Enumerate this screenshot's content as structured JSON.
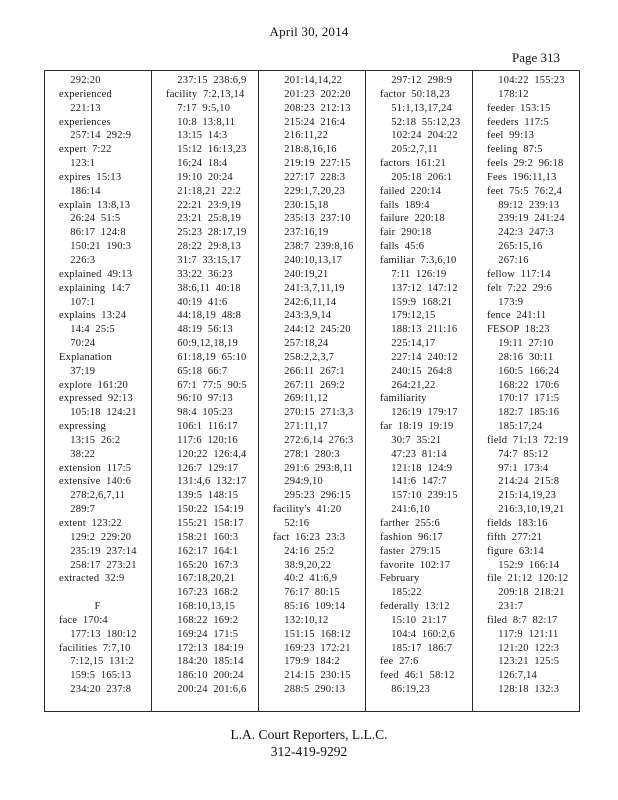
{
  "header": {
    "date": "April 30, 2014",
    "page_label": "Page 313"
  },
  "index": {
    "columns": [
      {
        "lines": [
          "    292:20",
          "experienced",
          "    221:13",
          "experiences",
          "    257:14  292:9",
          "expert  7:22",
          "    123:1",
          "expires  15:13",
          "    186:14",
          "explain  13:8,13",
          "    26:24  51:5",
          "    86:17  124:8",
          "    150:21  190:3",
          "    226:3",
          "explained  49:13",
          "explaining  14:7",
          "    107:1",
          "explains  13:24",
          "    14:4  25:5",
          "    70:24",
          "Explanation",
          "    37:19",
          "explore  161:20",
          "expressed  92:13",
          "    105:18  124:21",
          "expressing",
          "    13:15  26:2",
          "    38:22",
          "extension  117:5",
          "extensive  140:6",
          "    278:2,6,7,11",
          "    289:7",
          "extent  123:22",
          "    129:2  229:20",
          "    235:19  237:14",
          "    258:17  273:21",
          "extracted  32:9",
          "",
          "F",
          "face  170:4",
          "    177:13  180:12",
          "facilities  7:7,10",
          "    7:12,15  131:2",
          "    159:5  165:13",
          "    234:20  237:8"
        ]
      },
      {
        "lines": [
          "    237:15  238:6,9",
          "facility  7:2,13,14",
          "    7:17  9:5,10",
          "    10:8  13:8,11",
          "    13:15  14:3",
          "    15:12  16:13,23",
          "    16:24  18:4",
          "    19:10  20:24",
          "    21:18,21  22:2",
          "    22:21  23:9,19",
          "    23:21  25:8,19",
          "    25:23  28:17,19",
          "    28:22  29:8,13",
          "    31:7  33:15,17",
          "    33:22  36:23",
          "    38:6,11  40:18",
          "    40:19  41:6",
          "    44:18,19  48:8",
          "    48:19  56:13",
          "    60:9,12,18,19",
          "    61:18,19  65:10",
          "    65:18  66:7",
          "    67:1  77:5  90:5",
          "    96:10  97:13",
          "    98:4  105:23",
          "    106:1  116:17",
          "    117:6  120:16",
          "    120:22  126:4,4",
          "    126:7  129:17",
          "    131:4,6  132:17",
          "    139:5  148:15",
          "    150:22  154:19",
          "    155:21  158:17",
          "    158:21  160:3",
          "    162:17  164:1",
          "    165:20  167:3",
          "    167:18,20,21",
          "    167:23  168:2",
          "    168:10,13,15",
          "    168:22  169:2",
          "    169:24  171:5",
          "    172:13  184:19",
          "    184:20  185:14",
          "    186:10  200:24",
          "    200:24  201:6,6"
        ]
      },
      {
        "lines": [
          "    201:14,14,22",
          "    201:23  202:20",
          "    208:23  212:13",
          "    215:24  216:4",
          "    216:11,22",
          "    218:8,16,16",
          "    219:19  227:15",
          "    227:17  228:3",
          "    229:1,7,20,23",
          "    230:15,18",
          "    235:13  237:10",
          "    237:16,19",
          "    238:7  239:8,16",
          "    240:10,13,17",
          "    240:19,21",
          "    241:3,7,11,19",
          "    242:6,11,14",
          "    243:3,9,14",
          "    244:12  245:20",
          "    257:18,24",
          "    258:2,2,3,7",
          "    266:11  267:1",
          "    267:11  269:2",
          "    269:11,12",
          "    270:15  271:3,3",
          "    271:11,17",
          "    272:6,14  276:3",
          "    278:1  280:3",
          "    291:6  293:8,11",
          "    294:9,10",
          "    295:23  296:15",
          "facility's  41:20",
          "    52:16",
          "fact  16:23  23:3",
          "    24:16  25:2",
          "    38:9,20,22",
          "    40:2  41:6,9",
          "    76:17  80:15",
          "    85:16  109:14",
          "    132:10,12",
          "    151:15  168:12",
          "    169:23  172:21",
          "    179:9  184:2",
          "    214:15  230:15",
          "    288:5  290:13"
        ]
      },
      {
        "lines": [
          "    297:12  298:9",
          "factor  50:18,23",
          "    51:1,13,17,24",
          "    52:18  55:12,23",
          "    102:24  204:22",
          "    205:2,7,11",
          "factors  161:21",
          "    205:18  206:1",
          "failed  220:14",
          "fails  189:4",
          "failure  220:18",
          "fair  290:18",
          "falls  45:6",
          "familiar  7:3,6,10",
          "    7:11  126:19",
          "    137:12  147:12",
          "    159:9  168:21",
          "    179:12,15",
          "    188:13  211:16",
          "    225:14,17",
          "    227:14  240:12",
          "    240:15  264:8",
          "    264:21,22",
          "familiarity",
          "    126:19  179:17",
          "far  18:19  19:19",
          "    30:7  35:21",
          "    47:23  81:14",
          "    121:18  124:9",
          "    141:6  147:7",
          "    157:10  239:15",
          "    241:6,10",
          "farther  255:6",
          "fashion  96:17",
          "faster  279:15",
          "favorite  102:17",
          "February",
          "    185:22",
          "federally  13:12",
          "    15:10  21:17",
          "    104:4  160:2,6",
          "    185:17  186:7",
          "fee  27:6",
          "feed  46:1  58:12",
          "    86:19,23"
        ]
      },
      {
        "lines": [
          "    104:22  155:23",
          "    178:12",
          "feeder  153:15",
          "feeders  117:5",
          "feel  99:13",
          "feeling  87:5",
          "feels  29:2  96:18",
          "Fees  196:11,13",
          "feet  75:5  76:2,4",
          "    89:12  239:13",
          "    239:19  241:24",
          "    242:3  247:3",
          "    265:15,16",
          "    267:16",
          "fellow  117:14",
          "felt  7:22  29:6",
          "    173:9",
          "fence  241:11",
          "FESOP  18:23",
          "    19:11  27:10",
          "    28:16  30:11",
          "    160:5  166:24",
          "    168:22  170:6",
          "    170:17  171:5",
          "    182:7  185:16",
          "    185:17,24",
          "field  71:13  72:19",
          "    74:7  85:12",
          "    97:1  173:4",
          "    214:24  215:8",
          "    215:14,19,23",
          "    216:3,10,19,21",
          "fields  183:16",
          "fifth  277:21",
          "figure  63:14",
          "    152:9  166:14",
          "file  21:12  120:12",
          "    209:18  218:21",
          "    231:7",
          "filed  8:7  82:17",
          "    117:9  121:11",
          "    121:20  122:3",
          "    123:21  125:5",
          "    126:7,14",
          "    128:18  132:3"
        ]
      }
    ]
  },
  "footer": {
    "company": "L.A. Court Reporters, L.L.C.",
    "phone": "312-419-9292"
  }
}
